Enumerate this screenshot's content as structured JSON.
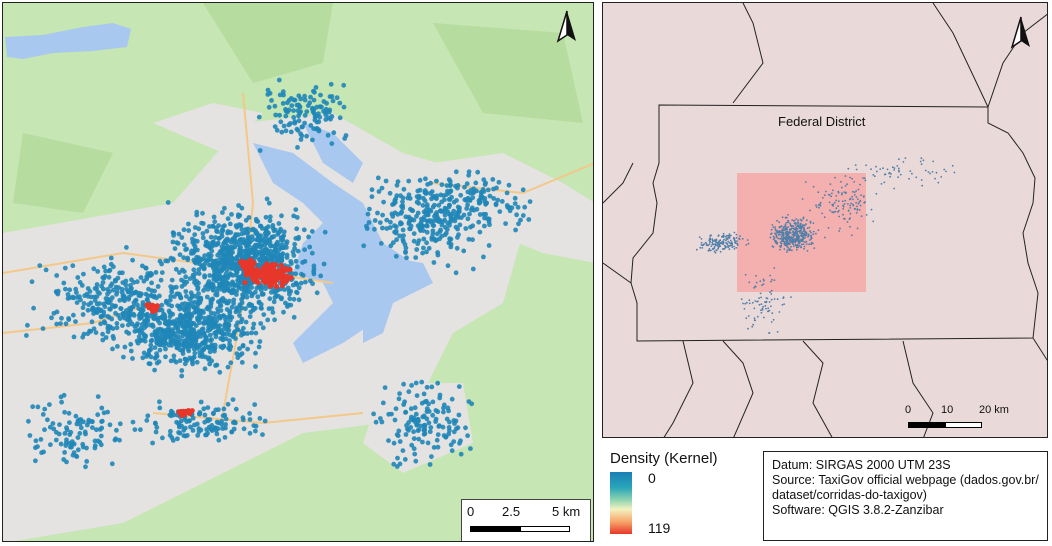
{
  "left_map": {
    "north_arrow": "north-arrow-icon",
    "scale_bar": {
      "labels": [
        "0",
        "2.5",
        "5 km"
      ]
    }
  },
  "right_map": {
    "north_arrow": "north-arrow-icon",
    "region_label": "Federal District",
    "scale_bar": {
      "labels": [
        "0",
        "10",
        "20 km"
      ]
    }
  },
  "legend": {
    "title": "Density (Kernel)",
    "max_label": "0",
    "min_label": "119",
    "colors": [
      "#1a7fb5",
      "#8fd3b0",
      "#f3f2c0",
      "#e7372a"
    ]
  },
  "info": {
    "datum": "Datum: SIRGAS 2000 UTM 23S",
    "source_line1": "Source: TaxiGov official webpage (dados.gov.br/",
    "source_line2": "dataset/corridas-do-taxigov)",
    "software": "Software: QGIS 3.8.2-Zanzibar"
  },
  "colors": {
    "lake": "#a9c8f0",
    "vegetation": "#c6e6b3",
    "urban": "#e4e4e4",
    "points": "#1f86b8",
    "hotspot": "#e7372a",
    "highlight": "#f6a7a7",
    "district_bg": "#ead9d9"
  }
}
